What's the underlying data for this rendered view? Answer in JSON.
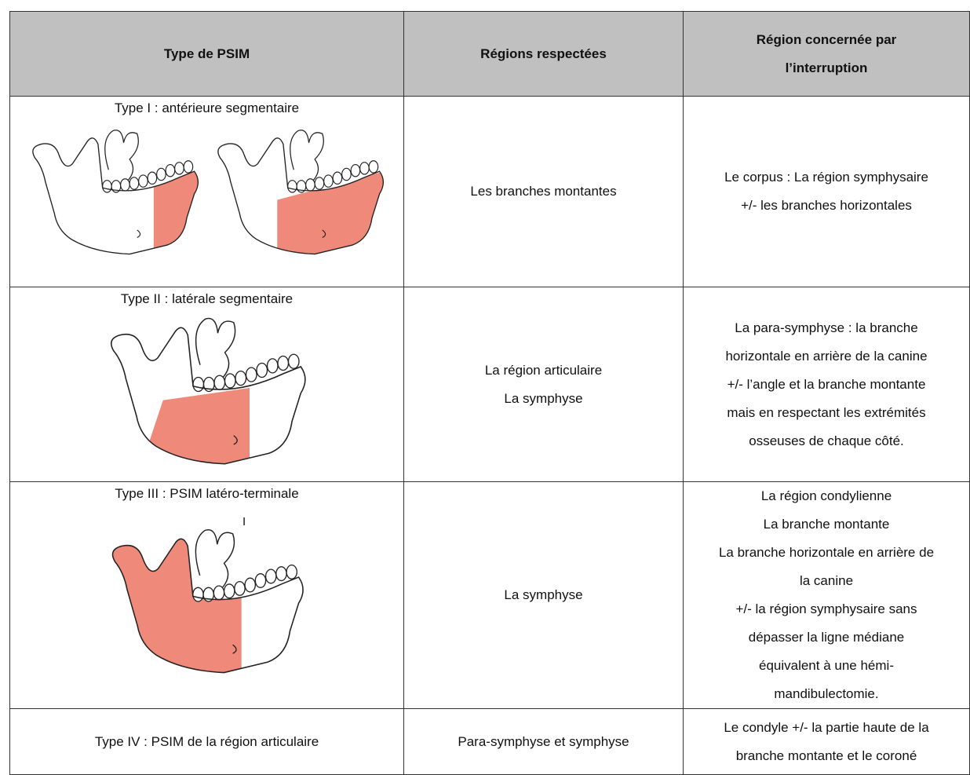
{
  "table": {
    "header": [
      "Type de PSIM",
      "Régions respectées",
      [
        "Région concernée par",
        "l’interruption"
      ]
    ],
    "rows": [
      {
        "type": "Type I : antérieure segmentaire",
        "regions": [
          "Les branches montantes"
        ],
        "interruption": [
          "Le corpus : La région symphysaire",
          "+/- les branches horizontales"
        ]
      },
      {
        "type": "Type II : latérale segmentaire",
        "regions": [
          "La région articulaire",
          "La symphyse"
        ],
        "interruption": [
          "La para-symphyse : la branche",
          "horizontale en arrière de la canine",
          "+/- l’angle et la branche montante",
          "mais en respectant les extrémités",
          "osseuses de chaque côté."
        ]
      },
      {
        "type": "Type III : PSIM latéro-terminale",
        "mark": "I",
        "regions": [
          "La symphyse"
        ],
        "interruption": [
          "La région condylienne",
          "La branche montante",
          "La branche horizontale en arrière de",
          "la canine",
          "+/- la région symphysaire sans",
          "dépasser la ligne médiane",
          "équivalent à une hémi-",
          "mandibulectomie."
        ]
      },
      {
        "type": "Type IV : PSIM de la région articulaire",
        "regions": [
          "Para-symphyse et symphyse"
        ],
        "interruption": [
          "Le condyle +/- la partie haute de la",
          "branche montante et le coroné"
        ]
      }
    ]
  }
}
